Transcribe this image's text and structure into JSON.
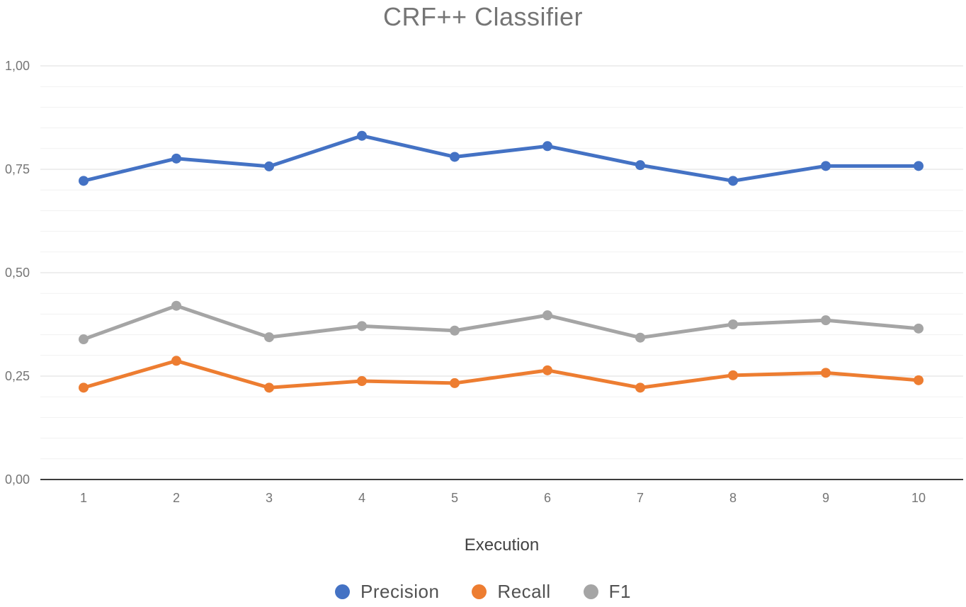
{
  "chart_data": {
    "type": "line",
    "title": "CRF++ Classifier",
    "xlabel": "Execution",
    "ylabel": "",
    "categories": [
      "1",
      "2",
      "3",
      "4",
      "5",
      "6",
      "7",
      "8",
      "9",
      "10"
    ],
    "series": [
      {
        "name": "Precision",
        "color": "#4472c4",
        "values": [
          0.722,
          0.776,
          0.757,
          0.831,
          0.78,
          0.806,
          0.76,
          0.722,
          0.758,
          0.758
        ]
      },
      {
        "name": "Recall",
        "color": "#ed7d31",
        "values": [
          0.222,
          0.287,
          0.222,
          0.238,
          0.233,
          0.264,
          0.222,
          0.252,
          0.258,
          0.24
        ]
      },
      {
        "name": "F1",
        "color": "#a5a5a5",
        "values": [
          0.339,
          0.42,
          0.344,
          0.371,
          0.36,
          0.397,
          0.343,
          0.375,
          0.385,
          0.365
        ]
      }
    ],
    "ylim": [
      0,
      1
    ],
    "yticks": [
      {
        "value": 0.0,
        "label": "0,00"
      },
      {
        "value": 0.25,
        "label": "0,25"
      },
      {
        "value": 0.5,
        "label": "0,50"
      },
      {
        "value": 0.75,
        "label": "0,75"
      },
      {
        "value": 1.0,
        "label": "1,00"
      }
    ],
    "minor_grid_step": 0.05,
    "grid": true,
    "legend_position": "bottom"
  },
  "colors": {
    "title_text": "#757575",
    "tick_text": "#757575",
    "axis_title_text": "#424242",
    "legend_text": "#525252",
    "major_grid": "#dcdcdc",
    "minor_grid": "#f1f1f1",
    "axis_line": "#3c3c3c",
    "background": "#ffffff"
  }
}
